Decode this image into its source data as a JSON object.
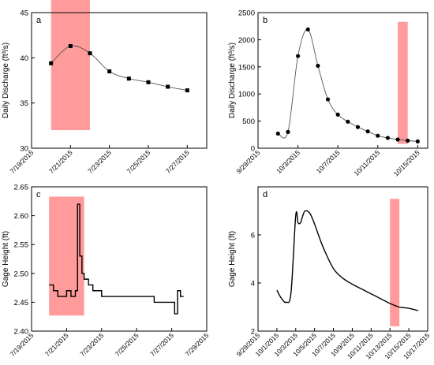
{
  "chart_data": [
    {
      "panel": "a",
      "type": "line",
      "xlabel": "",
      "ylabel": "Daily Discharge (ft³/s)",
      "xlim": [
        "7/19/2015",
        "7/28/2015"
      ],
      "ylim": [
        30,
        45
      ],
      "x_ticks": [
        "7/19/2015",
        "7/21/2015",
        "7/23/2015",
        "7/25/2015",
        "7/27/2015"
      ],
      "y_ticks": [
        30,
        35,
        40,
        45
      ],
      "grid": false,
      "highlight": {
        "x": [
          "7/20/2015",
          "7/22/2015"
        ],
        "y": [
          32,
          48.8
        ]
      },
      "series": [
        {
          "marker": "square",
          "x": [
            "7/20/2015",
            "7/21/2015",
            "7/22/2015",
            "7/23/2015",
            "7/24/2015",
            "7/25/2015",
            "7/26/2015",
            "7/27/2015"
          ],
          "values": [
            39.4,
            41.3,
            40.5,
            38.5,
            37.7,
            37.3,
            36.8,
            36.4
          ]
        }
      ]
    },
    {
      "panel": "b",
      "type": "line",
      "xlabel": "",
      "ylabel": "Daily Discharge (ft³/s)",
      "xlim": [
        "9/29/2015",
        "10/16/2015"
      ],
      "ylim": [
        0,
        2500
      ],
      "x_ticks": [
        "9/29/2015",
        "10/3/2015",
        "10/7/2015",
        "10/11/2015",
        "10/15/2015"
      ],
      "y_ticks": [
        0,
        500,
        1000,
        1500,
        2000,
        2500
      ],
      "grid": false,
      "highlight": {
        "x": [
          "10/13/2015",
          "10/14/2015"
        ],
        "y": [
          80,
          2330
        ]
      },
      "series": [
        {
          "marker": "circle",
          "x": [
            "10/1/2015",
            "10/2/2015",
            "10/3/2015",
            "10/4/2015",
            "10/5/2015",
            "10/6/2015",
            "10/7/2015",
            "10/8/2015",
            "10/9/2015",
            "10/10/2015",
            "10/11/2015",
            "10/12/2015",
            "10/13/2015",
            "10/14/2015",
            "10/15/2015"
          ],
          "values": [
            270,
            300,
            1700,
            2190,
            1520,
            900,
            620,
            490,
            390,
            310,
            230,
            190,
            160,
            140,
            125
          ]
        }
      ]
    },
    {
      "panel": "c",
      "type": "line",
      "xlabel": "",
      "ylabel": "Gage Height (ft)",
      "xlim": [
        "7/19/2015",
        "7/29/2015"
      ],
      "ylim": [
        2.4,
        2.65
      ],
      "x_ticks": [
        "7/19/2015",
        "7/21/2015",
        "7/23/2015",
        "7/25/2015",
        "7/27/2015",
        "7/29/2015"
      ],
      "y_ticks": [
        "2.40",
        "2.45",
        "2.50",
        "2.55",
        "2.60",
        "2.65"
      ],
      "grid": false,
      "highlight": {
        "x": [
          "7/20/2015",
          "7/22/2015"
        ],
        "y": [
          2.427,
          2.633
        ]
      },
      "series": [
        {
          "marker": "none",
          "step": true,
          "x": [
            "7/20/2015",
            "7/20/2015 06:00",
            "7/20/2015 12:00",
            "7/21/2015",
            "7/21/2015 06:00",
            "7/21/2015 12:00",
            "7/21/2015 15:00",
            "7/21/2015 18:00",
            "7/21/2015 21:00",
            "7/22/2015",
            "7/22/2015 06:00",
            "7/22/2015 12:00",
            "7/23/2015",
            "7/24/2015",
            "7/25/2015",
            "7/26/2015",
            "7/27/2015",
            "7/27/2015 04:00",
            "7/27/2015 08:00",
            "7/27/2015 12:00"
          ],
          "values": [
            2.48,
            2.47,
            2.46,
            2.47,
            2.46,
            2.47,
            2.62,
            2.53,
            2.5,
            2.49,
            2.48,
            2.47,
            2.46,
            2.46,
            2.46,
            2.45,
            2.45,
            2.43,
            2.47,
            2.46
          ]
        }
      ]
    },
    {
      "panel": "d",
      "type": "line",
      "xlabel": "",
      "ylabel": "Gage Height (ft)",
      "xlim": [
        "9/29/2015",
        "10/17/2015"
      ],
      "ylim": [
        2,
        8
      ],
      "x_ticks": [
        "9/29/2015",
        "10/1/2015",
        "10/3/2015",
        "10/5/2015",
        "10/7/2015",
        "10/9/2015",
        "10/11/2015",
        "10/13/2015",
        "10/15/2015",
        "10/17/2015"
      ],
      "y_ticks": [
        2,
        4,
        6
      ],
      "grid": false,
      "highlight": {
        "x": [
          "10/13/2015",
          "10/14/2015"
        ],
        "y": [
          2.2,
          7.5
        ]
      },
      "series": [
        {
          "marker": "none",
          "x": [
            "10/1/2015",
            "10/1/2015 12:00",
            "10/2/2015",
            "10/2/2015 12:00",
            "10/3/2015",
            "10/3/2015 06:00",
            "10/3/2015 12:00",
            "10/3/2015 18:00",
            "10/4/2015",
            "10/4/2015 12:00",
            "10/5/2015",
            "10/5/2015 12:00",
            "10/6/2015",
            "10/7/2015",
            "10/8/2015",
            "10/9/2015",
            "10/10/2015",
            "10/11/2015",
            "10/12/2015",
            "10/13/2015",
            "10/14/2015",
            "10/15/2015",
            "10/16/2015"
          ],
          "values": [
            3.7,
            3.35,
            3.2,
            3.6,
            6.8,
            6.5,
            6.5,
            6.8,
            7.0,
            6.9,
            6.45,
            5.9,
            5.4,
            4.6,
            4.2,
            3.95,
            3.75,
            3.55,
            3.35,
            3.15,
            3.0,
            2.95,
            2.85
          ]
        }
      ]
    }
  ]
}
